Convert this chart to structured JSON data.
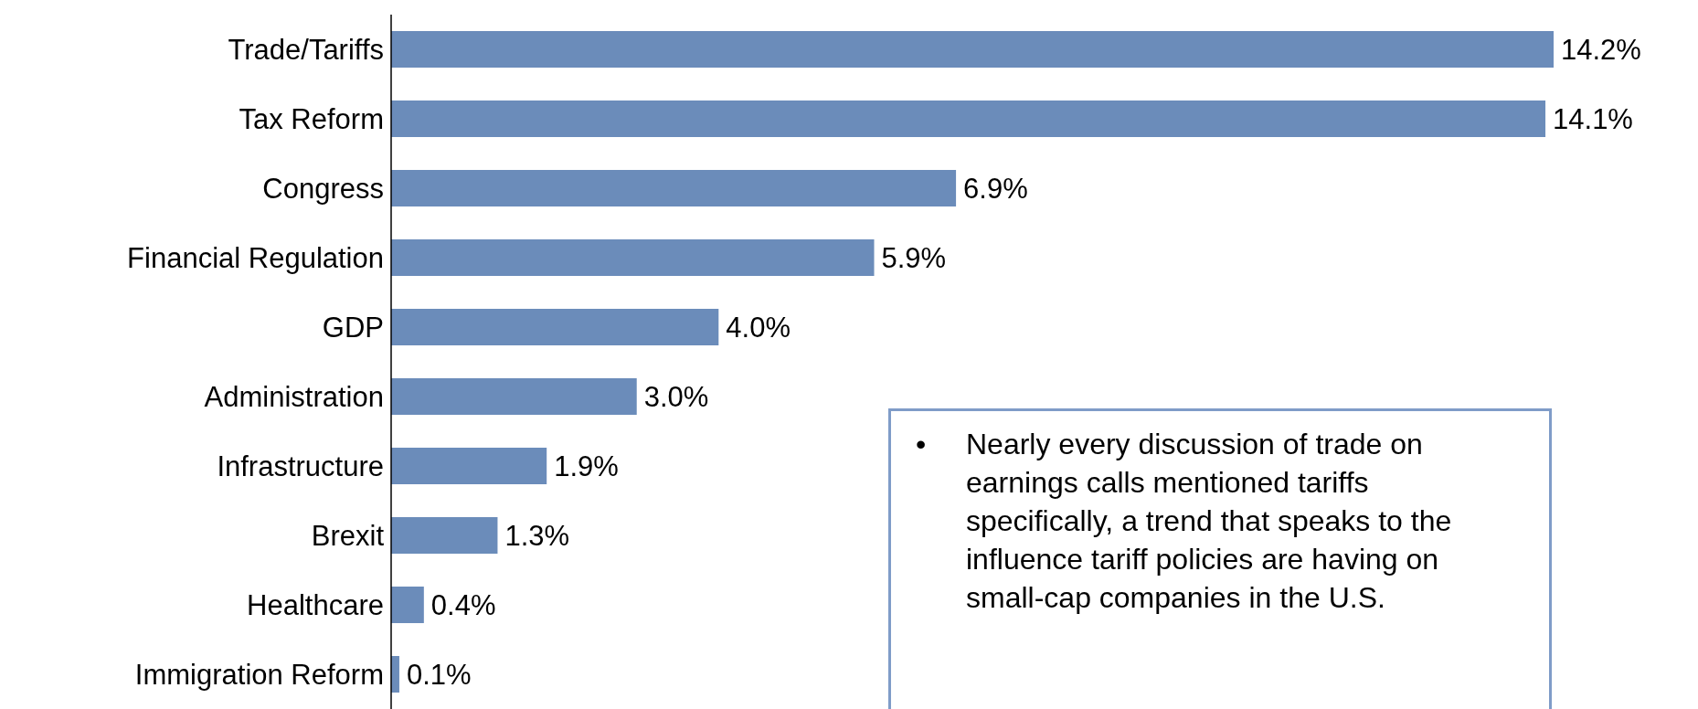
{
  "chart_data": {
    "type": "bar",
    "orientation": "horizontal",
    "categories": [
      "Trade/Tariffs",
      "Tax Reform",
      "Congress",
      "Financial Regulation",
      "GDP",
      "Administration",
      "Infrastructure",
      "Brexit",
      "Healthcare",
      "Immigration Reform"
    ],
    "values": [
      14.2,
      14.1,
      6.9,
      5.9,
      4.0,
      3.0,
      1.9,
      1.3,
      0.4,
      0.1
    ],
    "value_labels": [
      "14.2%",
      "14.1%",
      "6.9%",
      "5.9%",
      "4.0%",
      "3.0%",
      "1.9%",
      "1.3%",
      "0.4%",
      "0.1%"
    ],
    "color": "#6b8cba",
    "annotations": [
      "• Nearly every discussion of trade on earnings calls mentioned tariffs specifically, a trend that speaks to the influence tariff policies are having on small-cap companies in the U.S."
    ]
  }
}
